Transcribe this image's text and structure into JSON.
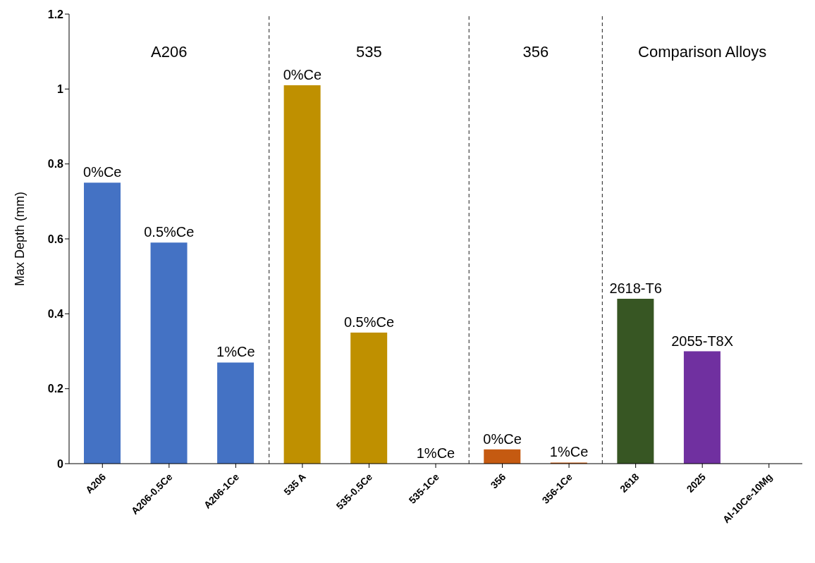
{
  "chart_data": {
    "type": "bar",
    "ylabel": "Max Depth (mm)",
    "categories": [
      "A206",
      "A206-0.5Ce",
      "A206-1Ce",
      "535 A",
      "535-0.5Ce",
      "535-1Ce",
      "356",
      "356-1Ce",
      "2618",
      "2025",
      "Al-10Ce-10Mg"
    ],
    "values": [
      0.75,
      0.59,
      0.27,
      1.01,
      0.35,
      0,
      0.038,
      0.003,
      0.44,
      0.3,
      0
    ],
    "colors": [
      "#4472c4",
      "#4472c4",
      "#4472c4",
      "#bf9000",
      "#bf9000",
      "#bf9000",
      "#c55a11",
      "#c55a11",
      "#375623",
      "#7030a0",
      "#7030a0"
    ],
    "annotations": [
      "A206",
      "535",
      "356",
      "Comparison Alloys",
      {
        "text": "0%Ce",
        "x": "A206",
        "y": 0.75
      },
      {
        "text": "0.5%Ce",
        "x": "A206-0.5Ce",
        "y": 0.59
      },
      {
        "text": "1%Ce",
        "x": "A206-1Ce",
        "y": 0.27
      },
      {
        "text": "0%Ce",
        "x": "535 A",
        "y": 1.01
      },
      {
        "text": "0.5%Ce",
        "x": "535-0.5Ce",
        "y": 0.35
      },
      {
        "text": "1%Ce",
        "x": "535-1Ce",
        "y": 0
      },
      {
        "text": "0%Ce",
        "x": "356",
        "y": 0.038
      },
      {
        "text": "1%Ce",
        "x": "356-1Ce",
        "y": 0.003
      },
      {
        "text": "2618-T6",
        "x": "2618",
        "y": 0.44
      },
      {
        "text": "2055-T8X",
        "x": "2025",
        "y": 0.3
      }
    ],
    "ylim": [
      0,
      1.2
    ],
    "yticks": [
      0,
      0.2,
      0.4,
      0.6,
      0.8,
      1,
      1.2
    ],
    "grid": false,
    "legend": false
  }
}
